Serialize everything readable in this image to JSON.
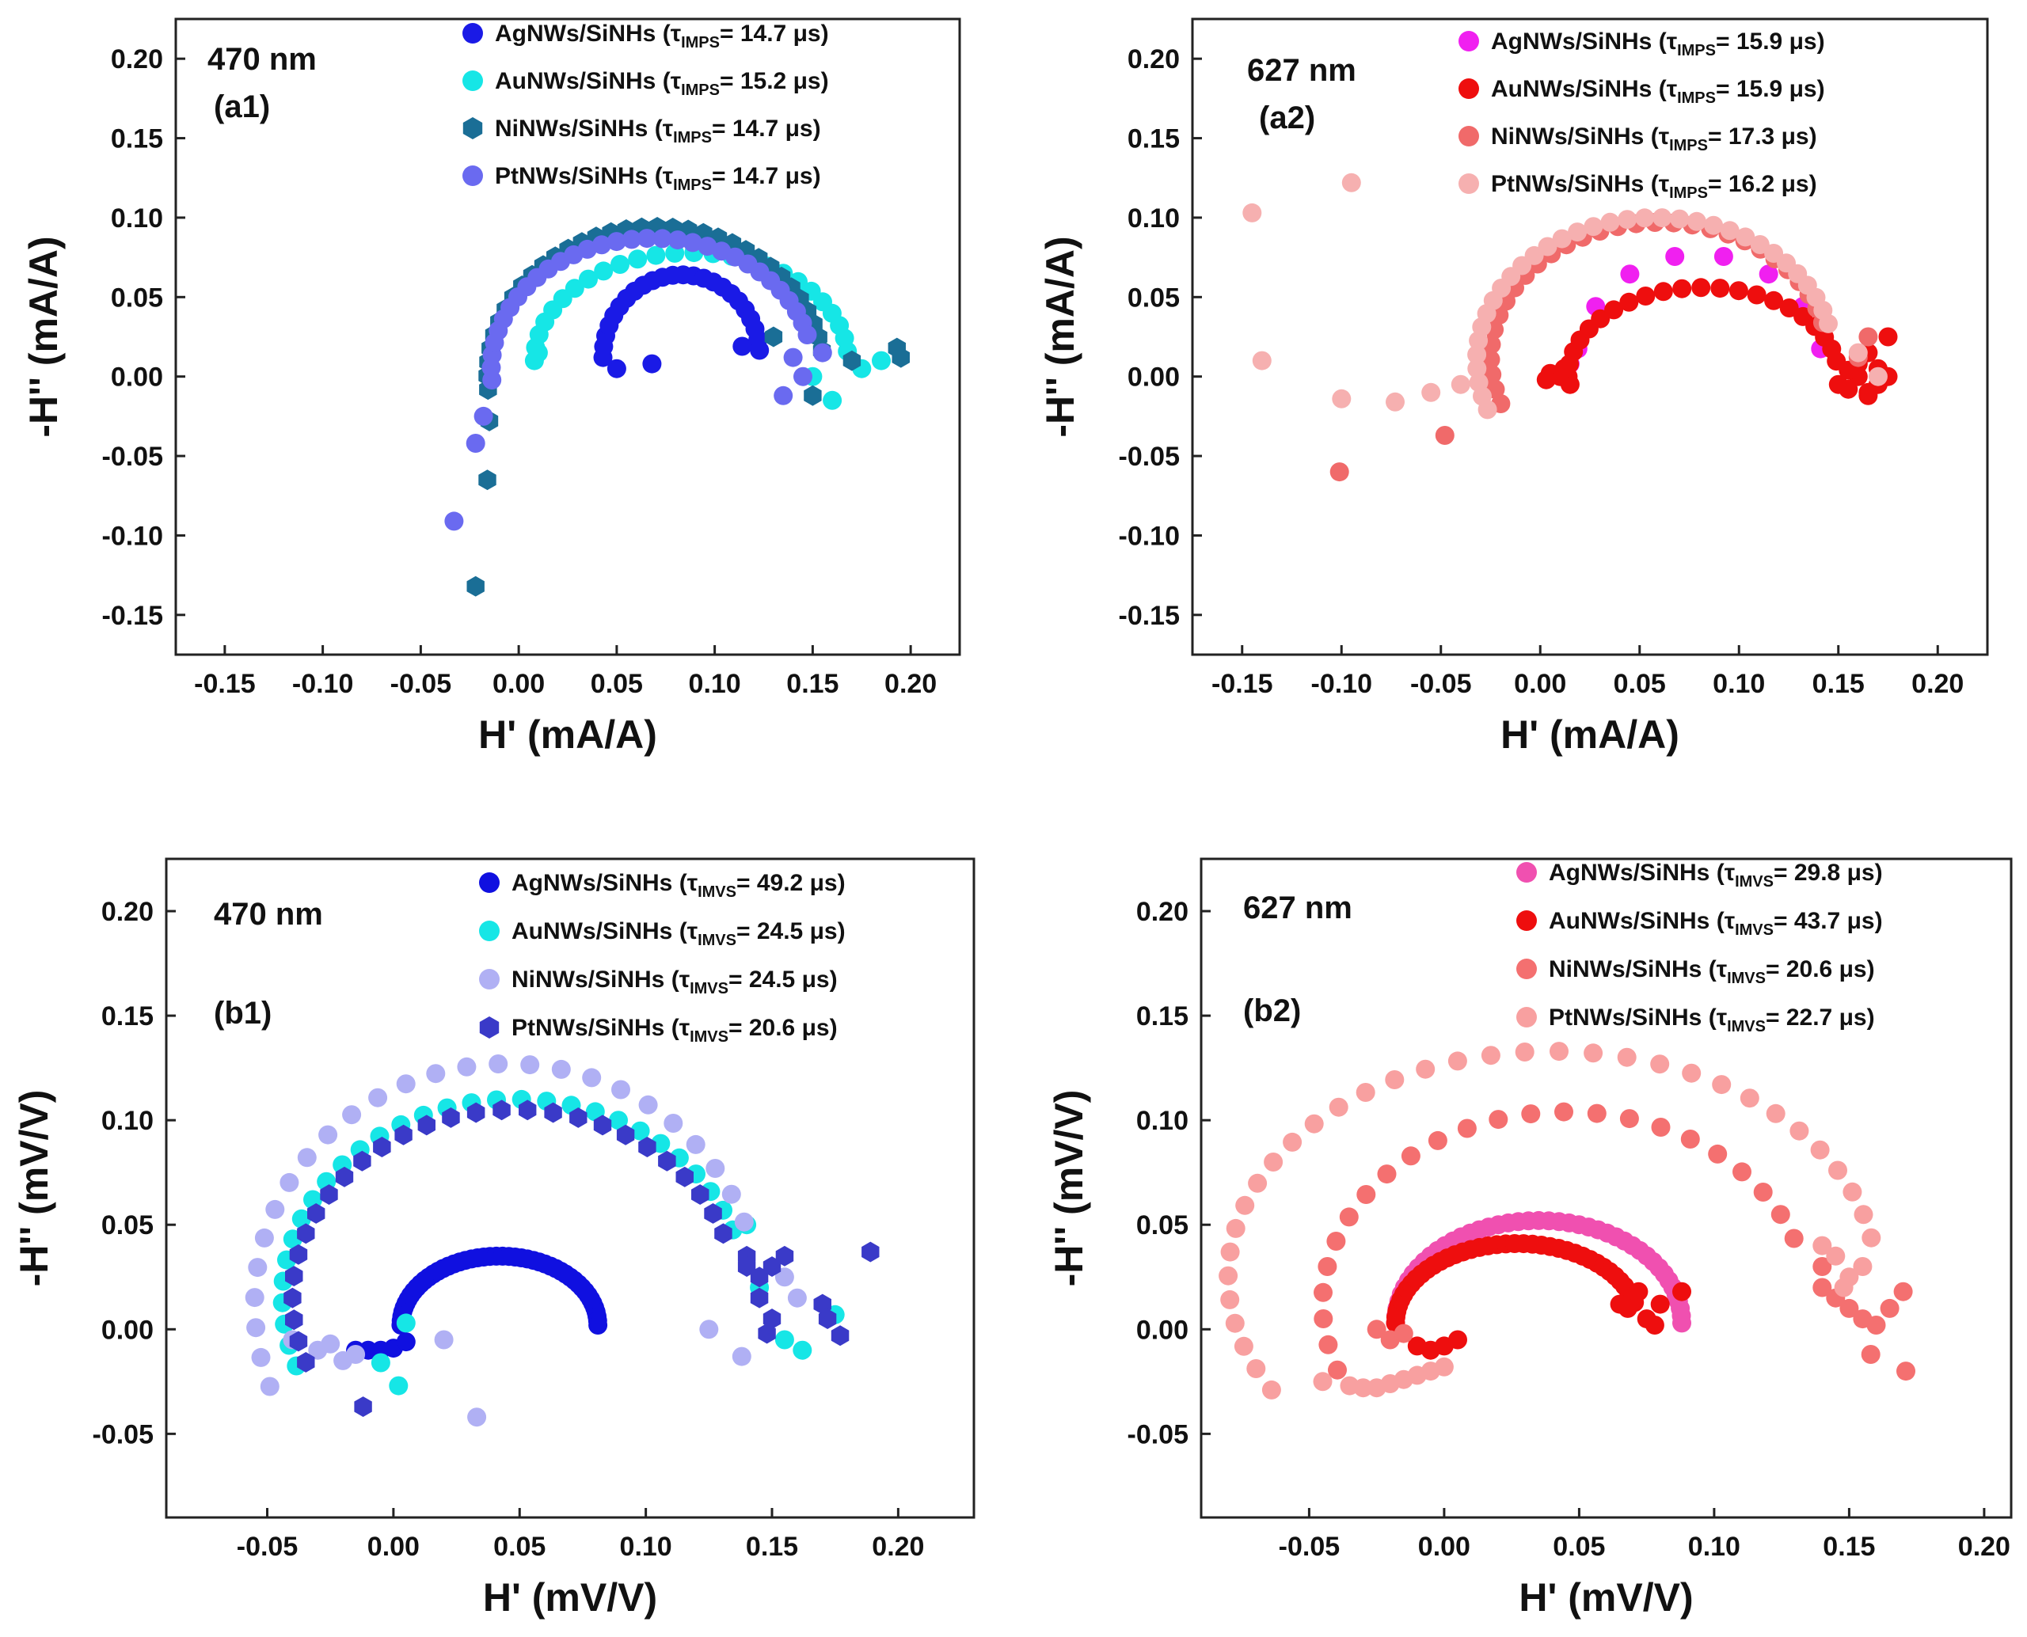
{
  "chart_data": [
    {
      "type": "scatter",
      "id": "a1",
      "wavelength_label": "470 nm",
      "panel_label": "(a1)",
      "xlabel": "H' (mA/A)",
      "ylabel": "-H'' (mA/A)",
      "xlim": [
        -0.175,
        0.225
      ],
      "ylim": [
        -0.175,
        0.225
      ],
      "xticks": [
        "-0.15",
        "-0.10",
        "-0.05",
        "0.00",
        "0.05",
        "0.10",
        "0.15",
        "0.20"
      ],
      "yticks": [
        "0.20",
        "0.15",
        "0.10",
        "0.05",
        "0.00",
        "-0.05",
        "-0.10",
        "-0.15"
      ],
      "legend_position": "top-right",
      "series": [
        {
          "name": "AgNWs/SiNHs",
          "tau_symbol": "τ",
          "tau_sub": "IMPS",
          "tau_value": "= 14.7 μs",
          "color": "#1a1ae6",
          "marker": "circle",
          "arc": {
            "start": 180,
            "end": 5,
            "cx": 0.083,
            "cy": 0.012,
            "rx": 0.04,
            "ry": 0.052,
            "n": 24
          },
          "points": [
            [
              0.05,
              0.005
            ],
            [
              0.068,
              0.008
            ],
            [
              0.114,
              0.019
            ]
          ]
        },
        {
          "name": "AuNWs/SiNHs",
          "tau_symbol": "τ",
          "tau_sub": "IMPS",
          "tau_value": "= 15.2 μs",
          "color": "#16e6e6",
          "marker": "circle",
          "arc": {
            "start": 180,
            "end": 5,
            "cx": 0.088,
            "cy": 0.01,
            "rx": 0.08,
            "ry": 0.068,
            "n": 26
          },
          "points": [
            [
              0.01,
              0.015
            ],
            [
              0.16,
              -0.015
            ],
            [
              0.175,
              0.005
            ],
            [
              0.185,
              0.01
            ],
            [
              0.15,
              0.0
            ]
          ]
        },
        {
          "name": "NiNWs/SiNHs",
          "tau_symbol": "τ",
          "tau_sub": "IMPS",
          "tau_value": "= 14.7 μs",
          "color": "#1a6e96",
          "marker": "hexagon",
          "arc": {
            "start": 185,
            "end": 10,
            "cx": 0.07,
            "cy": 0.0,
            "rx": 0.086,
            "ry": 0.094,
            "n": 34
          },
          "points": [
            [
              -0.015,
              -0.028
            ],
            [
              -0.016,
              -0.065
            ],
            [
              -0.022,
              -0.132
            ],
            [
              0.15,
              -0.012
            ],
            [
              0.193,
              0.018
            ],
            [
              0.195,
              0.012
            ],
            [
              0.17,
              0.01
            ],
            [
              0.13,
              0.025
            ]
          ]
        },
        {
          "name": "PtNWs/SiNHs",
          "tau_symbol": "τ",
          "tau_sub": "IMPS",
          "tau_value": "= 14.7 μs",
          "color": "#6a6af0",
          "marker": "circle",
          "arc": {
            "start": 185,
            "end": 15,
            "cx": 0.068,
            "cy": 0.005,
            "rx": 0.082,
            "ry": 0.082,
            "n": 32
          },
          "points": [
            [
              -0.018,
              -0.025
            ],
            [
              -0.022,
              -0.042
            ],
            [
              -0.033,
              -0.091
            ],
            [
              0.14,
              0.012
            ],
            [
              0.145,
              0.0
            ],
            [
              0.155,
              0.015
            ],
            [
              0.135,
              -0.012
            ]
          ]
        }
      ]
    },
    {
      "type": "scatter",
      "id": "a2",
      "wavelength_label": "627 nm",
      "panel_label": "(a2)",
      "xlabel": "H' (mA/A)",
      "ylabel": "-H'' (mA/A)",
      "xlim": [
        -0.175,
        0.225
      ],
      "ylim": [
        -0.175,
        0.225
      ],
      "xticks": [
        "-0.15",
        "-0.10",
        "-0.05",
        "0.00",
        "0.05",
        "0.10",
        "0.15",
        "0.20"
      ],
      "yticks": [
        "0.20",
        "0.15",
        "0.10",
        "0.05",
        "0.00",
        "-0.05",
        "-0.10",
        "-0.15"
      ],
      "legend_position": "top-right",
      "series": [
        {
          "name": "AgNWs/SiNHs",
          "tau_symbol": "τ",
          "tau_sub": "IMPS",
          "tau_value": "= 15.9 μs",
          "color": "#f020f0",
          "marker": "circle",
          "arc": {
            "start": 170,
            "end": 10,
            "cx": 0.08,
            "cy": 0.005,
            "rx": 0.062,
            "ry": 0.072,
            "n": 8
          },
          "points": [
            [
              0.015,
              0.008
            ]
          ]
        },
        {
          "name": "AuNWs/SiNHs",
          "tau_symbol": "τ",
          "tau_sub": "IMPS",
          "tau_value": "= 15.9 μs",
          "color": "#ee0e0e",
          "marker": "circle",
          "arc": {
            "start": 180,
            "end": 10,
            "cx": 0.082,
            "cy": 0.0,
            "rx": 0.068,
            "ry": 0.056,
            "n": 22
          },
          "points": [
            [
              0.155,
              -0.008
            ],
            [
              0.16,
              0.0
            ],
            [
              0.165,
              -0.01
            ],
            [
              0.17,
              0.005
            ],
            [
              0.175,
              0.0
            ],
            [
              0.16,
              0.008
            ],
            [
              0.17,
              -0.005
            ],
            [
              0.155,
              0.004
            ],
            [
              0.15,
              -0.005
            ],
            [
              0.175,
              0.025
            ],
            [
              0.165,
              0.015
            ],
            [
              0.165,
              -0.012
            ],
            [
              0.01,
              0.0
            ],
            [
              0.015,
              -0.005
            ],
            [
              0.005,
              0.002
            ],
            [
              0.003,
              -0.002
            ],
            [
              0.012,
              0.005
            ]
          ]
        },
        {
          "name": "NiNWs/SiNHs",
          "tau_symbol": "τ",
          "tau_sub": "IMPS",
          "tau_value": "= 17.3 μs",
          "color": "#f06a6a",
          "marker": "circle",
          "arc": {
            "start": 200,
            "end": 15,
            "cx": 0.06,
            "cy": 0.012,
            "rx": 0.085,
            "ry": 0.085,
            "n": 30
          },
          "points": [
            [
              -0.048,
              -0.037
            ],
            [
              -0.101,
              -0.06
            ],
            [
              0.165,
              0.025
            ],
            [
              0.16,
              0.012
            ]
          ]
        },
        {
          "name": "PtNWs/SiNHs",
          "tau_symbol": "τ",
          "tau_sub": "IMPS",
          "tau_value": "= 16.2 μs",
          "color": "#f6b0b0",
          "marker": "circle",
          "arc": {
            "start": 200,
            "end": 15,
            "cx": 0.058,
            "cy": 0.01,
            "rx": 0.09,
            "ry": 0.09,
            "n": 34
          },
          "points": [
            [
              -0.145,
              0.103
            ],
            [
              -0.095,
              0.122
            ],
            [
              -0.14,
              0.01
            ],
            [
              -0.1,
              -0.014
            ],
            [
              -0.073,
              -0.016
            ],
            [
              -0.055,
              -0.01
            ],
            [
              -0.04,
              -0.005
            ],
            [
              0.17,
              0.0
            ],
            [
              0.16,
              0.015
            ]
          ]
        }
      ]
    },
    {
      "type": "scatter",
      "id": "b1",
      "wavelength_label": "470 nm",
      "panel_label": "(b1)",
      "xlabel": "H' (mV/V)",
      "ylabel": "-H'' (mV/V)",
      "xlim": [
        -0.09,
        0.23
      ],
      "ylim": [
        -0.09,
        0.225
      ],
      "xticks": [
        "-0.05",
        "0.00",
        "0.05",
        "0.10",
        "0.15",
        "0.20"
      ],
      "yticks": [
        "0.20",
        "0.15",
        "0.10",
        "0.05",
        "0.00",
        "-0.05"
      ],
      "legend_position": "top-right",
      "series": [
        {
          "name": "AgNWs/SiNHs",
          "tau_symbol": "τ",
          "tau_sub": "IMVS",
          "tau_value": "= 49.2 μs",
          "color": "#1010e0",
          "marker": "circle",
          "arc": {
            "start": 180,
            "end": 0,
            "cx": 0.042,
            "cy": 0.002,
            "rx": 0.039,
            "ry": 0.033,
            "n": 50
          },
          "points": [
            [
              0.0,
              -0.009
            ],
            [
              -0.005,
              -0.01
            ],
            [
              -0.01,
              -0.01
            ],
            [
              -0.015,
              -0.01
            ],
            [
              0.005,
              -0.006
            ]
          ]
        },
        {
          "name": "AuNWs/SiNHs",
          "tau_symbol": "τ",
          "tau_sub": "IMVS",
          "tau_value": "= 24.5 μs",
          "color": "#16e6e6",
          "marker": "circle",
          "arc": {
            "start": 200,
            "end": 20,
            "cx": 0.048,
            "cy": 0.015,
            "rx": 0.092,
            "ry": 0.095,
            "n": 30
          },
          "points": [
            [
              0.005,
              0.003
            ],
            [
              0.002,
              -0.027
            ],
            [
              -0.005,
              -0.016
            ],
            [
              0.145,
              0.02
            ],
            [
              0.155,
              -0.005
            ],
            [
              0.162,
              -0.01
            ],
            [
              0.175,
              0.007
            ],
            [
              0.14,
              0.05
            ]
          ]
        },
        {
          "name": "NiNWs/SiNHs",
          "tau_symbol": "τ",
          "tau_sub": "IMVS",
          "tau_value": "= 24.5 μs",
          "color": "#b0b0f4",
          "marker": "circle",
          "arc": {
            "start": 200,
            "end": 20,
            "cx": 0.045,
            "cy": 0.012,
            "rx": 0.1,
            "ry": 0.115,
            "n": 26
          },
          "points": [
            [
              0.033,
              -0.042
            ],
            [
              0.02,
              -0.005
            ],
            [
              0.125,
              0.0
            ],
            [
              0.138,
              -0.013
            ],
            [
              0.155,
              0.025
            ],
            [
              0.16,
              0.015
            ],
            [
              -0.04,
              -0.005
            ],
            [
              -0.03,
              -0.01
            ],
            [
              -0.02,
              -0.015
            ],
            [
              -0.015,
              -0.012
            ],
            [
              -0.025,
              -0.007
            ]
          ]
        },
        {
          "name": "PtNWs/SiNHs",
          "tau_symbol": "τ",
          "tau_sub": "IMVS",
          "tau_value": "= 20.6 μs",
          "color": "#3a3ac8",
          "marker": "hexagon",
          "arc": {
            "start": 200,
            "end": 20,
            "cx": 0.048,
            "cy": 0.015,
            "rx": 0.088,
            "ry": 0.09,
            "n": 28
          },
          "points": [
            [
              -0.012,
              -0.037
            ],
            [
              0.14,
              0.035
            ],
            [
              0.145,
              0.025
            ],
            [
              0.15,
              0.03
            ],
            [
              0.145,
              0.015
            ],
            [
              0.15,
              0.005
            ],
            [
              0.148,
              -0.002
            ],
            [
              0.17,
              0.012
            ],
            [
              0.172,
              0.005
            ],
            [
              0.177,
              -0.003
            ],
            [
              0.189,
              0.037
            ],
            [
              0.14,
              0.03
            ],
            [
              0.155,
              0.035
            ]
          ]
        }
      ]
    },
    {
      "type": "scatter",
      "id": "b2",
      "wavelength_label": "627 nm",
      "panel_label": "(b2)",
      "xlabel": "H' (mV/V)",
      "ylabel": "-H'' (mV/V)",
      "xlim": [
        -0.09,
        0.21
      ],
      "ylim": [
        -0.09,
        0.225
      ],
      "xticks": [
        "-0.05",
        "0.00",
        "0.05",
        "0.10",
        "0.15",
        "0.20"
      ],
      "yticks": [
        "0.20",
        "0.15",
        "0.10",
        "0.05",
        "0.00",
        "-0.05"
      ],
      "legend_position": "top-right",
      "series": [
        {
          "name": "AgNWs/SiNHs",
          "tau_symbol": "τ",
          "tau_sub": "IMVS",
          "tau_value": "= 29.8 μs",
          "color": "#f050b0",
          "marker": "circle",
          "arc": {
            "start": 180,
            "end": 0,
            "cx": 0.035,
            "cy": 0.003,
            "rx": 0.053,
            "ry": 0.049,
            "n": 45
          },
          "points": []
        },
        {
          "name": "AuNWs/SiNHs",
          "tau_symbol": "τ",
          "tau_sub": "IMVS",
          "tau_value": "= 43.7 μs",
          "color": "#ee0e0e",
          "marker": "circle",
          "arc": {
            "start": 180,
            "end": 15,
            "cx": 0.027,
            "cy": 0.003,
            "rx": 0.045,
            "ry": 0.038,
            "n": 40
          },
          "points": [
            [
              0.068,
              0.01
            ],
            [
              0.075,
              0.005
            ],
            [
              0.08,
              0.012
            ],
            [
              0.072,
              0.018
            ],
            [
              0.088,
              0.018
            ],
            [
              0.078,
              0.002
            ],
            [
              0.065,
              0.012
            ],
            [
              -0.005,
              -0.01
            ],
            [
              0.0,
              -0.008
            ],
            [
              0.005,
              -0.005
            ],
            [
              -0.01,
              -0.008
            ]
          ]
        },
        {
          "name": "NiNWs/SiNHs",
          "tau_symbol": "τ",
          "tau_sub": "IMVS",
          "tau_value": "= 20.6 μs",
          "color": "#f47070",
          "marker": "circle",
          "arc": {
            "start": 200,
            "end": 20,
            "cx": 0.045,
            "cy": 0.012,
            "rx": 0.09,
            "ry": 0.092,
            "n": 24
          },
          "points": [
            [
              0.14,
              0.02
            ],
            [
              0.145,
              0.015
            ],
            [
              0.15,
              0.01
            ],
            [
              0.155,
              0.005
            ],
            [
              0.16,
              0.002
            ],
            [
              0.165,
              0.01
            ],
            [
              0.17,
              0.018
            ],
            [
              0.158,
              -0.012
            ],
            [
              0.171,
              -0.02
            ],
            [
              0.14,
              0.03
            ],
            [
              -0.02,
              -0.005
            ],
            [
              -0.025,
              0.0
            ],
            [
              -0.015,
              -0.002
            ]
          ]
        },
        {
          "name": "PtNWs/SiNHs",
          "tau_symbol": "τ",
          "tau_sub": "IMVS",
          "tau_value": "= 22.7 μs",
          "color": "#f8a0a0",
          "marker": "circle",
          "arc": {
            "start": 210,
            "end": 10,
            "cx": 0.04,
            "cy": 0.025,
            "rx": 0.12,
            "ry": 0.108,
            "n": 34
          },
          "points": [
            [
              -0.03,
              -0.028
            ],
            [
              -0.025,
              -0.028
            ],
            [
              -0.02,
              -0.026
            ],
            [
              -0.015,
              -0.024
            ],
            [
              -0.01,
              -0.022
            ],
            [
              -0.005,
              -0.02
            ],
            [
              0.0,
              -0.018
            ],
            [
              -0.035,
              -0.027
            ],
            [
              -0.045,
              -0.025
            ],
            [
              0.145,
              0.035
            ],
            [
              0.15,
              0.025
            ],
            [
              0.14,
              0.04
            ],
            [
              0.155,
              0.03
            ],
            [
              0.148,
              0.02
            ]
          ]
        }
      ]
    }
  ]
}
